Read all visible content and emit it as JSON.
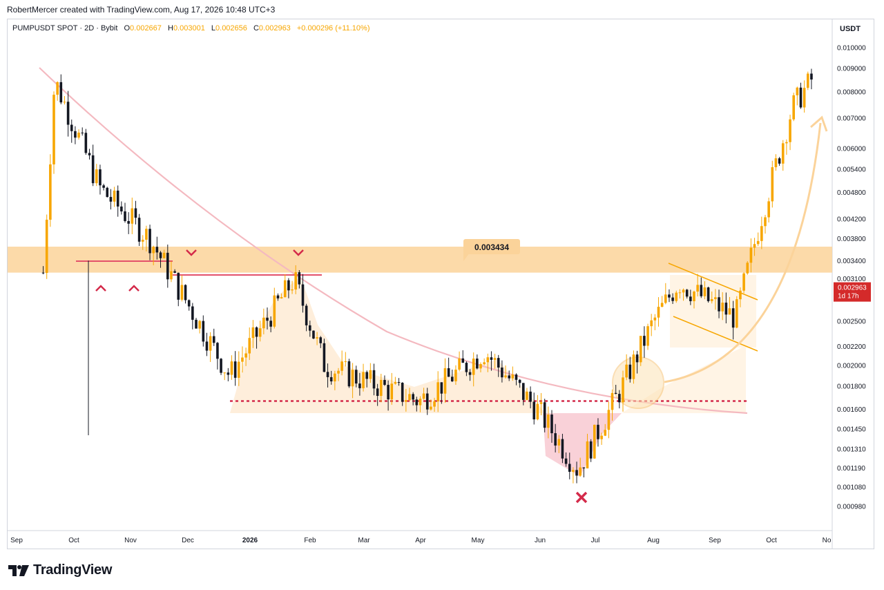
{
  "header": {
    "credit": "RobertMercer created with TradingView.com, Aug 17, 2026 10:48 UTC+3"
  },
  "legend": {
    "symbol": "PUMPUSDT SPOT · 2D · Bybit",
    "open_label": "O",
    "open": "0.002667",
    "high_label": "H",
    "high": "0.003001",
    "low_label": "L",
    "low": "0.002656",
    "close_label": "C",
    "close": "0.002963",
    "change": "+0.000296 (+11.10%)"
  },
  "currency": "USDT",
  "brand": {
    "name": "TradingView"
  },
  "colors": {
    "up": "#f7a600",
    "down": "#131722",
    "zone": "#fbd39a",
    "accent_red": "#d42a4a",
    "curve": "#f4b9c0"
  },
  "chart_data": {
    "type": "candlestick",
    "scale": "log",
    "y_ticks": [
      "0.010000",
      "0.009000",
      "0.008000",
      "0.007000",
      "0.006000",
      "0.005400",
      "0.004800",
      "0.004200",
      "0.003800",
      "0.003400",
      "0.003100",
      "0.002500",
      "0.002200",
      "0.002000",
      "0.001800",
      "0.001600",
      "0.001450",
      "0.001310",
      "0.001190",
      "0.001080",
      "0.000980"
    ],
    "x_ticks": [
      "Sep",
      "Oct",
      "Nov",
      "Dec",
      "2026",
      "Feb",
      "Mar",
      "Apr",
      "May",
      "Jun",
      "Jul",
      "Aug",
      "Sep",
      "Oct",
      "No"
    ],
    "last_price": {
      "value": "0.002963",
      "countdown": "1d 17h"
    },
    "resistance_zone": {
      "low": 0.0032,
      "high": 0.00365,
      "label": "0.003434"
    },
    "support_level": 0.00167,
    "anchor_points": [
      {
        "date": "2025-09-15",
        "price": 0.0032
      },
      {
        "date": "2025-09-21",
        "price": 0.0085
      },
      {
        "date": "2025-10-15",
        "price": 0.0049
      },
      {
        "date": "2025-11-10",
        "price": 0.0038
      },
      {
        "date": "2025-12-22",
        "price": 0.0019
      },
      {
        "date": "2026-01-25",
        "price": 0.0031
      },
      {
        "date": "2026-02-10",
        "price": 0.002
      },
      {
        "date": "2026-04-01",
        "price": 0.00167
      },
      {
        "date": "2026-05-05",
        "price": 0.00215
      },
      {
        "date": "2026-06-02",
        "price": 0.0016
      },
      {
        "date": "2026-06-23",
        "price": 0.00118
      },
      {
        "date": "2026-07-15",
        "price": 0.00175
      },
      {
        "date": "2026-08-02",
        "price": 0.0025
      },
      {
        "date": "2026-08-15",
        "price": 0.00305
      },
      {
        "date": "2026-09-14",
        "price": 0.00255
      },
      {
        "date": "2026-09-28",
        "price": 0.0043
      },
      {
        "date": "2026-10-14",
        "price": 0.0074
      },
      {
        "date": "2026-10-24",
        "price": 0.0085
      }
    ]
  }
}
